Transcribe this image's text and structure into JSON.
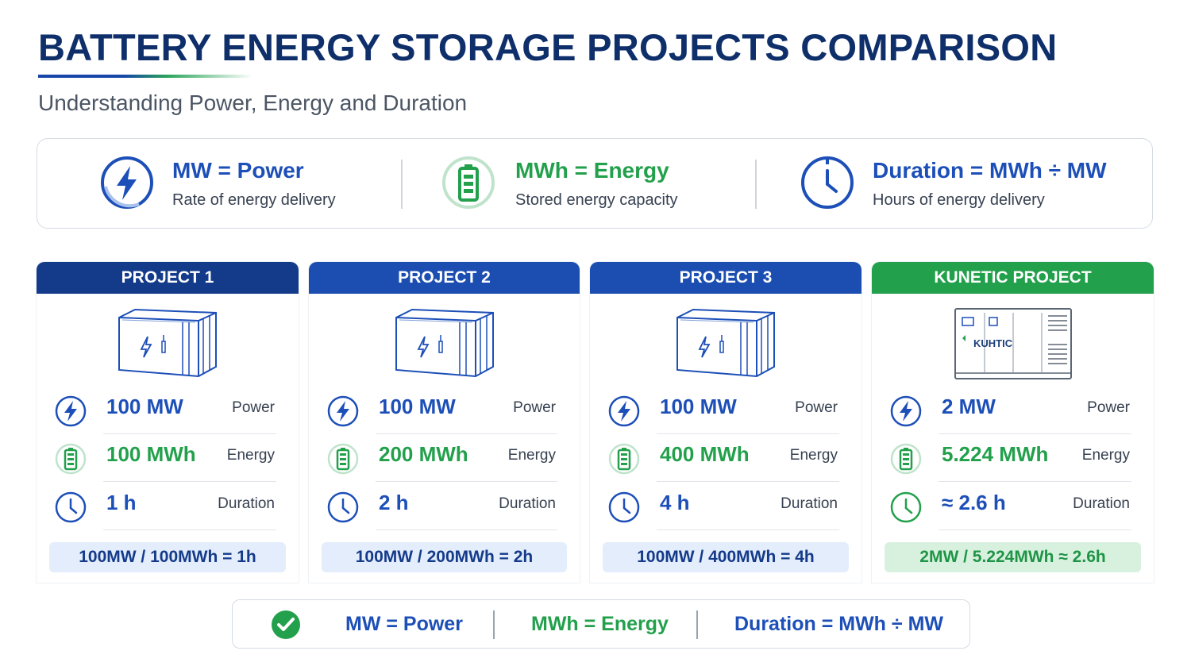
{
  "title": "BATTERY ENERGY STORAGE PROJECTS COMPARISON",
  "subtitle": "Understanding Power, Energy and Duration",
  "definitions": [
    {
      "icon": "lightning-icon",
      "head": "MW = Power",
      "desc": "Rate of energy delivery",
      "color": "#1d4fb8"
    },
    {
      "icon": "battery-icon",
      "head": "MWh = Energy",
      "desc": "Stored energy capacity",
      "color": "#22a04b"
    },
    {
      "icon": "clock-icon",
      "head": "Duration = MWh ÷ MW",
      "desc": "Hours of energy delivery",
      "color": "#1d4fb8"
    }
  ],
  "projects": [
    {
      "name": "PROJECT 1",
      "header_color": "#143a8a",
      "power": "100 MW",
      "energy": "100 MWh",
      "duration": "1 h",
      "power_label": "Power",
      "energy_label": "Energy",
      "duration_label": "Duration",
      "formula": "100MW / 100MWh = 1h"
    },
    {
      "name": "PROJECT 2",
      "header_color": "#1b4eb0",
      "power": "100 MW",
      "energy": "200 MWh",
      "duration": "2 h",
      "power_label": "Power",
      "energy_label": "Energy",
      "duration_label": "Duration",
      "formula": "100MW / 200MWh = 2h"
    },
    {
      "name": "PROJECT 3",
      "header_color": "#1b4eb0",
      "power": "100 MW",
      "energy": "400 MWh",
      "duration": "4 h",
      "power_label": "Power",
      "energy_label": "Energy",
      "duration_label": "Duration",
      "formula": "100MW / 400MWh = 4h"
    },
    {
      "name": "KUNETIC PROJECT",
      "header_color": "#22a04b",
      "power": "2 MW",
      "energy": "5.224 MWh",
      "duration": "≈ 2.6 h",
      "power_label": "Power",
      "energy_label": "Energy",
      "duration_label": "Duration",
      "formula": "2MW / 5.224MWh ≈ 2.6h",
      "logo_text": "KUHTIC"
    }
  ],
  "footer": {
    "icon": "check-circle-icon",
    "items": [
      "MW = Power",
      "MWh = Energy",
      "Duration = MWh ÷ MW"
    ]
  },
  "colors": {
    "blue": "#1d4fb8",
    "green": "#22a04b",
    "navy": "#0f2f6b"
  }
}
